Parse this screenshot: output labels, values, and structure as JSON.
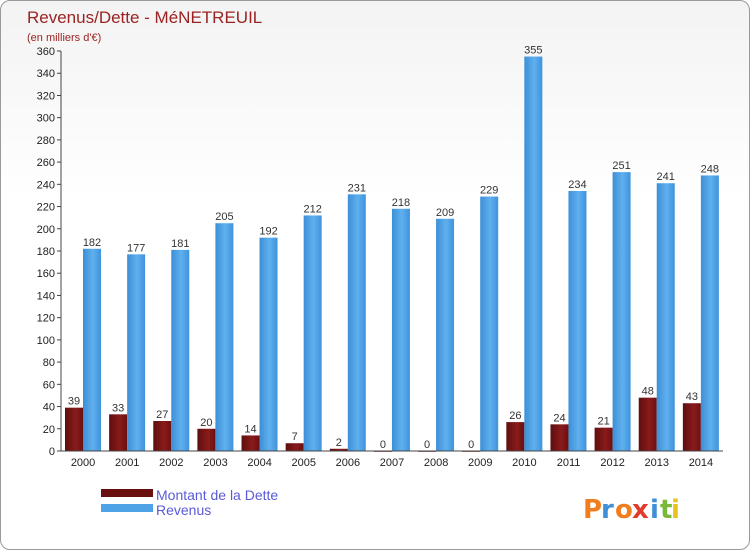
{
  "chart_data": {
    "type": "bar",
    "title": "Revenus/Dette - MéNETREUIL",
    "subtitle": "(en milliers d'€)",
    "categories": [
      "2000",
      "2001",
      "2002",
      "2003",
      "2004",
      "2005",
      "2006",
      "2007",
      "2008",
      "2009",
      "2010",
      "2011",
      "2012",
      "2013",
      "2014"
    ],
    "series": [
      {
        "name": "Montant de la Dette",
        "color": "#7a1414",
        "values": [
          39,
          33,
          27,
          20,
          14,
          7,
          2,
          0,
          0,
          0,
          26,
          24,
          21,
          48,
          43
        ]
      },
      {
        "name": "Revenus",
        "color": "#4da3e6",
        "values": [
          182,
          177,
          181,
          205,
          192,
          212,
          231,
          218,
          209,
          229,
          355,
          234,
          251,
          241,
          248
        ]
      }
    ],
    "ylim": [
      0,
      360
    ],
    "yticks": [
      0,
      20,
      40,
      60,
      80,
      100,
      120,
      140,
      160,
      180,
      200,
      220,
      240,
      260,
      280,
      300,
      320,
      340,
      360
    ],
    "grid": false,
    "legend_position": "bottom-left",
    "xlabel": "",
    "ylabel": ""
  },
  "logo": {
    "text": "Proxiti",
    "letters": [
      "P",
      "r",
      "o",
      "x",
      "i",
      "t",
      "i"
    ],
    "colors": [
      "#f07d1e",
      "#3d8fd8",
      "#f07d1e",
      "#e23b2e",
      "#3d8fd8",
      "#7ab83a",
      "#e8c21f"
    ]
  }
}
